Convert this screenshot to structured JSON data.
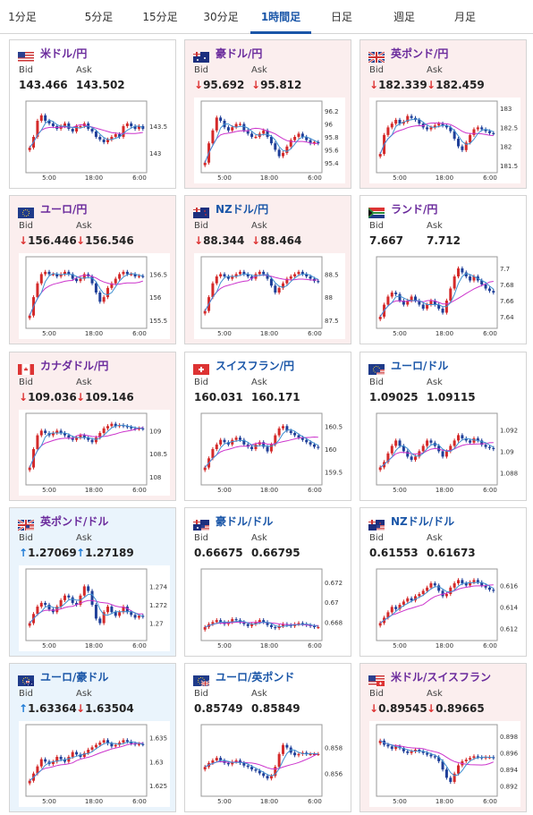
{
  "tabs": [
    "1分足",
    "5分足",
    "15分足",
    "30分足",
    "1時間足",
    "日足",
    "週足",
    "月足"
  ],
  "active_tab_index": 4,
  "colors": {
    "accent": "#1a56a8",
    "pair_purple": "#6a2a9c",
    "down_arrow": "#d33333",
    "up_arrow": "#1e7bd6",
    "candle_up": "#d42a2a",
    "candle_down": "#1f3f99",
    "ma_short": "#3f8fd0",
    "ma_long": "#cc33cc",
    "card_up_bg": "#eaf4fc",
    "card_down_bg": "#fbeeee"
  },
  "cards": [
    {
      "pair": "米ドル/円",
      "flag": "us",
      "title_color": "purple",
      "trend": "none",
      "bid_label": "Bid",
      "ask_label": "Ask",
      "bid_arrow": "",
      "ask_arrow": "",
      "bid": "143.466",
      "ask": "143.502",
      "chart_data": {
        "type": "candlestick",
        "x_ticks": [
          "5:00",
          "18:00",
          "6:00"
        ],
        "y_ticks": [
          "143.5",
          "143"
        ],
        "ylim": [
          142.7,
          143.9
        ],
        "close": [
          143.1,
          143.3,
          143.6,
          143.7,
          143.6,
          143.55,
          143.5,
          143.45,
          143.5,
          143.55,
          143.45,
          143.4,
          143.5,
          143.5,
          143.55,
          143.45,
          143.4,
          143.3,
          143.25,
          143.2,
          143.25,
          143.3,
          143.35,
          143.3,
          143.5,
          143.55,
          143.5,
          143.45,
          143.5,
          143.45
        ]
      }
    },
    {
      "pair": "豪ドル/円",
      "flag": "au",
      "title_color": "purple",
      "trend": "down",
      "bid_label": "Bid",
      "ask_label": "Ask",
      "bid_arrow": "↓",
      "ask_arrow": "↓",
      "bid": "95.692",
      "ask": "95.812",
      "chart_data": {
        "type": "candlestick",
        "x_ticks": [
          "5:00",
          "18:00",
          "6:00"
        ],
        "y_ticks": [
          "96.2",
          "96",
          "95.8",
          "95.6",
          "95.4"
        ],
        "ylim": [
          95.3,
          96.3
        ],
        "close": [
          95.4,
          95.7,
          95.9,
          96.1,
          96.05,
          95.95,
          95.9,
          95.95,
          96.0,
          96.0,
          95.9,
          95.85,
          95.8,
          95.8,
          95.85,
          95.9,
          95.8,
          95.7,
          95.6,
          95.5,
          95.55,
          95.65,
          95.75,
          95.8,
          95.85,
          95.8,
          95.75,
          95.7,
          95.72,
          95.7
        ]
      }
    },
    {
      "pair": "英ポンド/円",
      "flag": "gb",
      "title_color": "purple",
      "trend": "down",
      "bid_label": "Bid",
      "ask_label": "Ask",
      "bid_arrow": "↓",
      "ask_arrow": "↓",
      "bid": "182.339",
      "ask": "182.459",
      "chart_data": {
        "type": "candlestick",
        "x_ticks": [
          "5:00",
          "18:00",
          "6:00"
        ],
        "y_ticks": [
          "183",
          "182.5",
          "182",
          "181.5"
        ],
        "ylim": [
          181.4,
          183.1
        ],
        "close": [
          181.8,
          182.3,
          182.5,
          182.6,
          182.7,
          182.6,
          182.65,
          182.8,
          182.75,
          182.7,
          182.6,
          182.5,
          182.45,
          182.5,
          182.55,
          182.6,
          182.55,
          182.5,
          182.4,
          182.2,
          182.0,
          181.9,
          182.1,
          182.3,
          182.45,
          182.5,
          182.45,
          182.4,
          182.35,
          182.34
        ]
      }
    },
    {
      "pair": "ユーロ/円",
      "flag": "eu",
      "title_color": "purple",
      "trend": "down",
      "bid_label": "Bid",
      "ask_label": "Ask",
      "bid_arrow": "↓",
      "ask_arrow": "↓",
      "bid": "156.446",
      "ask": "156.546",
      "chart_data": {
        "type": "candlestick",
        "x_ticks": [
          "5:00",
          "18:00",
          "6:00"
        ],
        "y_ticks": [
          "156.5",
          "156",
          "155.5"
        ],
        "ylim": [
          155.4,
          156.8
        ],
        "close": [
          155.6,
          156.0,
          156.3,
          156.5,
          156.55,
          156.5,
          156.5,
          156.45,
          156.5,
          156.55,
          156.5,
          156.4,
          156.35,
          156.4,
          156.5,
          156.45,
          156.3,
          156.1,
          155.9,
          156.0,
          156.2,
          156.3,
          156.4,
          156.5,
          156.55,
          156.5,
          156.5,
          156.45,
          156.46,
          156.45
        ]
      }
    },
    {
      "pair": "NZドル/円",
      "flag": "nz",
      "title_color": "blue",
      "trend": "down",
      "bid_label": "Bid",
      "ask_label": "Ask",
      "bid_arrow": "↓",
      "ask_arrow": "↓",
      "bid": "88.344",
      "ask": "88.464",
      "chart_data": {
        "type": "candlestick",
        "x_ticks": [
          "5:00",
          "18:00",
          "6:00"
        ],
        "y_ticks": [
          "88.5",
          "88",
          "87.5"
        ],
        "ylim": [
          87.4,
          88.8
        ],
        "close": [
          87.7,
          88.0,
          88.3,
          88.45,
          88.5,
          88.45,
          88.4,
          88.45,
          88.5,
          88.55,
          88.5,
          88.45,
          88.4,
          88.5,
          88.55,
          88.5,
          88.4,
          88.25,
          88.1,
          88.2,
          88.3,
          88.4,
          88.45,
          88.5,
          88.55,
          88.5,
          88.45,
          88.4,
          88.35,
          88.34
        ]
      }
    },
    {
      "pair": "ランド/円",
      "flag": "za",
      "title_color": "purple",
      "trend": "none",
      "bid_label": "Bid",
      "ask_label": "Ask",
      "bid_arrow": "",
      "ask_arrow": "",
      "bid": "7.667",
      "ask": "7.712",
      "chart_data": {
        "type": "candlestick",
        "x_ticks": [
          "5:00",
          "18:00",
          "6:00"
        ],
        "y_ticks": [
          "7.7",
          "7.68",
          "7.66",
          "7.64"
        ],
        "ylim": [
          7.63,
          7.71
        ],
        "close": [
          7.64,
          7.655,
          7.665,
          7.67,
          7.668,
          7.66,
          7.655,
          7.66,
          7.665,
          7.66,
          7.655,
          7.65,
          7.655,
          7.66,
          7.655,
          7.65,
          7.645,
          7.66,
          7.675,
          7.69,
          7.7,
          7.695,
          7.69,
          7.685,
          7.69,
          7.685,
          7.68,
          7.675,
          7.672,
          7.67
        ]
      }
    },
    {
      "pair": "カナダドル/円",
      "flag": "ca",
      "title_color": "purple",
      "trend": "down",
      "bid_label": "Bid",
      "ask_label": "Ask",
      "bid_arrow": "↓",
      "ask_arrow": "↓",
      "bid": "109.036",
      "ask": "109.146",
      "chart_data": {
        "type": "candlestick",
        "x_ticks": [
          "5:00",
          "18:00",
          "6:00"
        ],
        "y_ticks": [
          "109",
          "108.5",
          "108"
        ],
        "ylim": [
          107.9,
          109.3
        ],
        "close": [
          108.2,
          108.6,
          108.9,
          109.0,
          108.95,
          108.9,
          108.95,
          109.0,
          108.95,
          108.9,
          108.85,
          108.8,
          108.85,
          108.9,
          108.85,
          108.8,
          108.75,
          108.85,
          108.95,
          109.05,
          109.1,
          109.15,
          109.1,
          109.12,
          109.1,
          109.08,
          109.05,
          109.04,
          109.05,
          109.04
        ]
      }
    },
    {
      "pair": "スイスフラン/円",
      "flag": "ch",
      "title_color": "blue",
      "trend": "none",
      "bid_label": "Bid",
      "ask_label": "Ask",
      "bid_arrow": "",
      "ask_arrow": "",
      "bid": "160.031",
      "ask": "160.171",
      "chart_data": {
        "type": "candlestick",
        "x_ticks": [
          "5:00",
          "18:00",
          "6:00"
        ],
        "y_ticks": [
          "160.5",
          "160",
          "159.5"
        ],
        "ylim": [
          159.3,
          160.7
        ],
        "close": [
          159.6,
          159.8,
          160.0,
          160.1,
          160.2,
          160.15,
          160.1,
          160.2,
          160.25,
          160.2,
          160.1,
          160.05,
          160.0,
          160.1,
          160.15,
          160.05,
          159.95,
          160.1,
          160.3,
          160.45,
          160.5,
          160.4,
          160.35,
          160.3,
          160.25,
          160.2,
          160.15,
          160.1,
          160.05,
          160.03
        ]
      }
    },
    {
      "pair": "ユーロ/ドル",
      "flag": "eu_us",
      "title_color": "blue",
      "trend": "none",
      "bid_label": "Bid",
      "ask_label": "Ask",
      "bid_arrow": "",
      "ask_arrow": "",
      "bid": "1.09025",
      "ask": "1.09115",
      "chart_data": {
        "type": "candlestick",
        "x_ticks": [
          "5:00",
          "18:00",
          "6:00"
        ],
        "y_ticks": [
          "1.092",
          "1.09",
          "1.088"
        ],
        "ylim": [
          1.0872,
          1.0932
        ],
        "close": [
          1.0885,
          1.089,
          1.0898,
          1.0905,
          1.091,
          1.0905,
          1.09,
          1.0895,
          1.0892,
          1.0895,
          1.09,
          1.0905,
          1.091,
          1.0908,
          1.0905,
          1.09,
          1.0895,
          1.09,
          1.0905,
          1.091,
          1.0915,
          1.0912,
          1.091,
          1.0908,
          1.0912,
          1.091,
          1.0906,
          1.0904,
          1.0903,
          1.0902
        ]
      }
    },
    {
      "pair": "英ポンド/ドル",
      "flag": "gb_us",
      "title_color": "purple",
      "trend": "up",
      "bid_label": "Bid",
      "ask_label": "Ask",
      "bid_arrow": "↑",
      "ask_arrow": "↑",
      "bid": "1.27069",
      "ask": "1.27189",
      "chart_data": {
        "type": "candlestick",
        "x_ticks": [
          "5:00",
          "18:00",
          "6:00"
        ],
        "y_ticks": [
          "1.274",
          "1.272",
          "1.27"
        ],
        "ylim": [
          1.2685,
          1.2755
        ],
        "close": [
          1.27,
          1.271,
          1.2718,
          1.2722,
          1.272,
          1.2715,
          1.2712,
          1.2718,
          1.2725,
          1.273,
          1.2728,
          1.2722,
          1.272,
          1.273,
          1.274,
          1.2735,
          1.272,
          1.2705,
          1.27,
          1.2712,
          1.2718,
          1.2712,
          1.2708,
          1.2712,
          1.2718,
          1.2712,
          1.2709,
          1.2706,
          1.2708,
          1.2707
        ]
      }
    },
    {
      "pair": "豪ドル/ドル",
      "flag": "au_us",
      "title_color": "blue",
      "trend": "none",
      "bid_label": "Bid",
      "ask_label": "Ask",
      "bid_arrow": "",
      "ask_arrow": "",
      "bid": "0.66675",
      "ask": "0.66795",
      "chart_data": {
        "type": "candlestick",
        "x_ticks": [
          "5:00",
          "18:00",
          "6:00"
        ],
        "y_ticks": [
          "0.672",
          "0.67",
          "0.668"
        ],
        "ylim": [
          0.6665,
          0.673
        ],
        "close": [
          0.6675,
          0.6678,
          0.668,
          0.6682,
          0.668,
          0.6678,
          0.668,
          0.6683,
          0.6682,
          0.668,
          0.6678,
          0.6676,
          0.6678,
          0.668,
          0.6682,
          0.668,
          0.6677,
          0.6675,
          0.6674,
          0.6676,
          0.6678,
          0.6677,
          0.6676,
          0.6678,
          0.6679,
          0.6678,
          0.6677,
          0.6676,
          0.6675,
          0.6675
        ]
      }
    },
    {
      "pair": "NZドル/ドル",
      "flag": "nz_us",
      "title_color": "blue",
      "trend": "none",
      "bid_label": "Bid",
      "ask_label": "Ask",
      "bid_arrow": "",
      "ask_arrow": "",
      "bid": "0.61553",
      "ask": "0.61673",
      "chart_data": {
        "type": "candlestick",
        "x_ticks": [
          "5:00",
          "18:00",
          "6:00"
        ],
        "y_ticks": [
          "0.616",
          "0.614",
          "0.612"
        ],
        "ylim": [
          0.6112,
          0.6172
        ],
        "close": [
          0.6125,
          0.613,
          0.6135,
          0.614,
          0.6138,
          0.6142,
          0.6145,
          0.6148,
          0.6146,
          0.615,
          0.6152,
          0.6155,
          0.6158,
          0.6162,
          0.616,
          0.6155,
          0.615,
          0.6152,
          0.6158,
          0.6162,
          0.6165,
          0.6162,
          0.616,
          0.6163,
          0.6165,
          0.6163,
          0.616,
          0.6158,
          0.6156,
          0.6155
        ]
      }
    },
    {
      "pair": "ユーロ/豪ドル",
      "flag": "eu_au",
      "title_color": "blue",
      "trend": "up",
      "bid_label": "Bid",
      "ask_label": "Ask",
      "bid_arrow": "↑",
      "ask_arrow": "↓",
      "bid": "1.63364",
      "ask": "1.63504",
      "chart_data": {
        "type": "candlestick",
        "x_ticks": [
          "5:00",
          "18:00",
          "6:00"
        ],
        "y_ticks": [
          "1.635",
          "1.63",
          "1.625"
        ],
        "ylim": [
          1.6235,
          1.637
        ],
        "close": [
          1.626,
          1.6275,
          1.629,
          1.6305,
          1.63,
          1.6295,
          1.63,
          1.631,
          1.6305,
          1.63,
          1.631,
          1.632,
          1.6315,
          1.631,
          1.6318,
          1.6325,
          1.633,
          1.6335,
          1.634,
          1.6345,
          1.6338,
          1.6332,
          1.6335,
          1.634,
          1.6345,
          1.6342,
          1.6338,
          1.6336,
          1.6337,
          1.6336
        ]
      }
    },
    {
      "pair": "ユーロ/英ポンド",
      "flag": "eu_gb",
      "title_color": "blue",
      "trend": "none",
      "bid_label": "Bid",
      "ask_label": "Ask",
      "bid_arrow": "",
      "ask_arrow": "",
      "bid": "0.85749",
      "ask": "0.85849",
      "chart_data": {
        "type": "candlestick",
        "x_ticks": [
          "5:00",
          "18:00",
          "6:00"
        ],
        "y_ticks": [
          "0.858",
          "0.856"
        ],
        "ylim": [
          0.8545,
          0.8595
        ],
        "close": [
          0.8565,
          0.8568,
          0.857,
          0.8572,
          0.857,
          0.8568,
          0.8567,
          0.8569,
          0.857,
          0.8568,
          0.8566,
          0.8565,
          0.8563,
          0.8562,
          0.856,
          0.8558,
          0.8556,
          0.8558,
          0.8565,
          0.8575,
          0.8582,
          0.858,
          0.8576,
          0.8574,
          0.8575,
          0.8576,
          0.8575,
          0.8575,
          0.8575,
          0.8575
        ]
      }
    },
    {
      "pair": "米ドル/スイスフラン",
      "flag": "us_ch",
      "title_color": "purple",
      "trend": "down",
      "bid_label": "Bid",
      "ask_label": "Ask",
      "bid_arrow": "↓",
      "ask_arrow": "↓",
      "bid": "0.89545",
      "ask": "0.89665",
      "chart_data": {
        "type": "candlestick",
        "x_ticks": [
          "5:00",
          "18:00",
          "6:00"
        ],
        "y_ticks": [
          "0.898",
          "0.896",
          "0.894",
          "0.892"
        ],
        "ylim": [
          0.8912,
          0.899
        ],
        "close": [
          0.8975,
          0.897,
          0.8968,
          0.8965,
          0.8968,
          0.8966,
          0.8962,
          0.896,
          0.8962,
          0.8964,
          0.8962,
          0.896,
          0.8958,
          0.8956,
          0.8955,
          0.895,
          0.894,
          0.893,
          0.8925,
          0.8935,
          0.8945,
          0.895,
          0.8952,
          0.8954,
          0.8956,
          0.8955,
          0.8954,
          0.8955,
          0.8955,
          0.8954
        ]
      }
    }
  ]
}
